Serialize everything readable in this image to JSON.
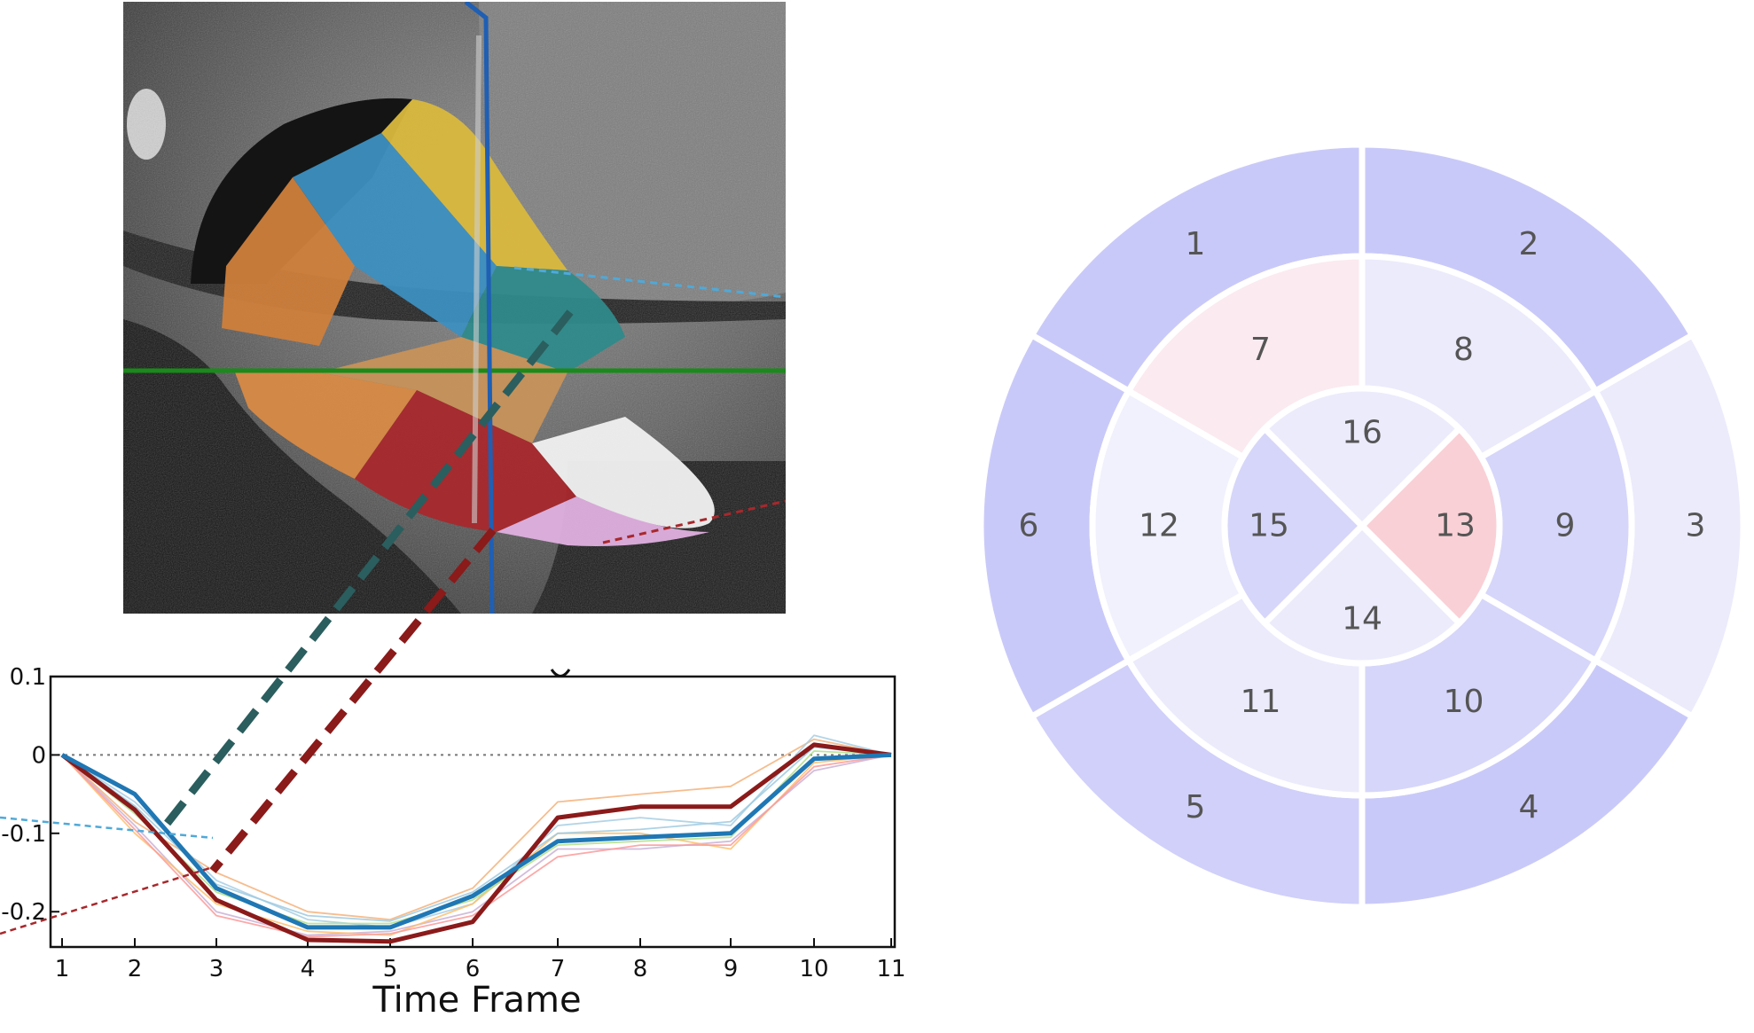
{
  "chart_data": {
    "type": "line",
    "xlabel": "Time Frame",
    "ylabel": "",
    "x": [
      1,
      2,
      3,
      4,
      5,
      6,
      7,
      8,
      9,
      10,
      11
    ],
    "ylim": [
      -0.245,
      0.1
    ],
    "yticks": [
      0.1,
      0,
      -0.1,
      -0.2
    ],
    "ytick_labels": [
      "0.1",
      "0",
      "-0.1",
      "-0.2"
    ],
    "zero_line": true,
    "series": [
      {
        "color": "#8b1a1a",
        "emphasis": true,
        "values": [
          0,
          -0.07,
          -0.185,
          -0.236,
          -0.238,
          -0.213,
          -0.08,
          -0.066,
          -0.066,
          0.013,
          0
        ]
      },
      {
        "color": "#1f77b4",
        "emphasis": true,
        "values": [
          0,
          -0.05,
          -0.17,
          -0.22,
          -0.22,
          -0.18,
          -0.11,
          -0.105,
          -0.1,
          -0.005,
          0
        ]
      },
      {
        "color": "#f5b27a",
        "values": [
          0,
          -0.085,
          -0.15,
          -0.2,
          -0.21,
          -0.17,
          -0.06,
          -0.05,
          -0.04,
          0.02,
          0
        ]
      },
      {
        "color": "#a6cee3",
        "values": [
          0,
          -0.06,
          -0.16,
          -0.21,
          -0.22,
          -0.19,
          -0.09,
          -0.08,
          -0.09,
          0.025,
          0
        ]
      },
      {
        "color": "#cab2d6",
        "values": [
          0,
          -0.09,
          -0.2,
          -0.23,
          -0.225,
          -0.2,
          -0.12,
          -0.12,
          -0.11,
          -0.02,
          0
        ]
      },
      {
        "color": "#fdbf6f",
        "values": [
          0,
          -0.1,
          -0.19,
          -0.225,
          -0.23,
          -0.19,
          -0.1,
          -0.1,
          -0.12,
          -0.01,
          0
        ]
      },
      {
        "color": "#b2df8a",
        "values": [
          0,
          -0.075,
          -0.175,
          -0.215,
          -0.215,
          -0.185,
          -0.115,
          -0.11,
          -0.105,
          0.005,
          0
        ]
      },
      {
        "color": "#fb9a99",
        "values": [
          0,
          -0.095,
          -0.205,
          -0.232,
          -0.228,
          -0.205,
          -0.13,
          -0.115,
          -0.115,
          -0.015,
          0
        ]
      },
      {
        "color": "#9ecae1",
        "values": [
          0,
          -0.065,
          -0.165,
          -0.205,
          -0.212,
          -0.175,
          -0.1,
          -0.095,
          -0.085,
          0.01,
          0
        ]
      }
    ]
  },
  "bullseye": {
    "segments": [
      {
        "label": "1",
        "ring": "basal",
        "index": 0,
        "color": "#c9c9f9"
      },
      {
        "label": "2",
        "ring": "basal",
        "index": 1,
        "color": "#c9c9f9"
      },
      {
        "label": "3",
        "ring": "basal",
        "index": 2,
        "color": "#ebebfc"
      },
      {
        "label": "4",
        "ring": "basal",
        "index": 3,
        "color": "#c9c9f9"
      },
      {
        "label": "5",
        "ring": "basal",
        "index": 4,
        "color": "#d0d0fa"
      },
      {
        "label": "6",
        "ring": "basal",
        "index": 5,
        "color": "#c9c9f9"
      },
      {
        "label": "7",
        "ring": "mid",
        "index": 0,
        "color": "#fbeaf0"
      },
      {
        "label": "8",
        "ring": "mid",
        "index": 1,
        "color": "#ebebfc"
      },
      {
        "label": "9",
        "ring": "mid",
        "index": 2,
        "color": "#d6d6fa"
      },
      {
        "label": "10",
        "ring": "mid",
        "index": 3,
        "color": "#d6d6fa"
      },
      {
        "label": "11",
        "ring": "mid",
        "index": 4,
        "color": "#ebebfc"
      },
      {
        "label": "12",
        "ring": "mid",
        "index": 5,
        "color": "#f1f1fd"
      },
      {
        "label": "13",
        "ring": "apical",
        "index": 0,
        "color": "#f9d0d6"
      },
      {
        "label": "14",
        "ring": "apical",
        "index": 1,
        "color": "#ebebfc"
      },
      {
        "label": "15",
        "ring": "apical",
        "index": 2,
        "color": "#d6d6fa"
      },
      {
        "label": "16",
        "ring": "apical",
        "index": 3,
        "color": "#ebebfc"
      }
    ]
  },
  "scan_image": {
    "legend_colors": {
      "yellow": "#d9b83c",
      "blue": "#3d8fc0",
      "orange": "#cf7f3c",
      "teal": "#2f8a8a",
      "tan": "#c7925a",
      "red": "#a8282c",
      "white": "#eeeeee",
      "pink": "#e0b0e0"
    },
    "guide_lines": {
      "vertical": "#1f5fb4",
      "horizontal": "#1a8a1a"
    }
  },
  "connector_colors": {
    "teal": "#2b5e5e",
    "red": "#8b1a1a"
  }
}
